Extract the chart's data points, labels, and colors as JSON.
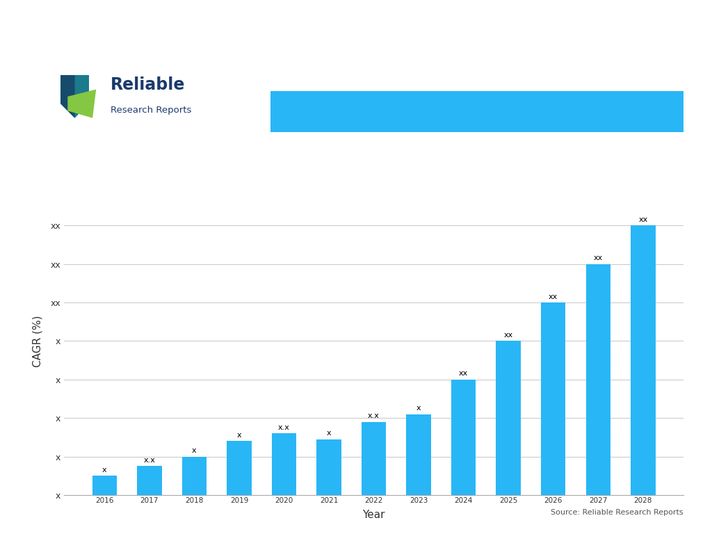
{
  "years": [
    2016,
    2017,
    2018,
    2019,
    2020,
    2021,
    2022,
    2023,
    2024,
    2025,
    2026,
    2027,
    2028
  ],
  "values": [
    1.0,
    1.5,
    2.0,
    2.8,
    3.2,
    2.9,
    3.8,
    4.2,
    6.0,
    8.0,
    10.0,
    12.0,
    14.0
  ],
  "bar_labels": [
    "x",
    "x.x",
    "x",
    "x",
    "x.x",
    "x",
    "x.x",
    "x",
    "xx",
    "xx",
    "xx",
    "xx",
    "xx"
  ],
  "ytick_labels": [
    "x",
    "x",
    "x",
    "x",
    "x",
    "xx",
    "xx",
    "xx"
  ],
  "ytick_values": [
    0,
    2,
    4,
    6,
    8,
    10,
    12,
    14
  ],
  "bar_color": "#29B6F6",
  "title_banner_color": "#29B6F6",
  "title_text": "",
  "ylabel": "CAGR (%)",
  "xlabel": "Year",
  "source_text": "Source: Reliable Research Reports",
  "background_color": "#FFFFFF",
  "logo_text_line1": "Reliable",
  "logo_text_line2": "Research Reports",
  "logo_shield_color1": "#1A6B8A",
  "logo_shield_color2": "#164B6B",
  "logo_leaf_color": "#85C742",
  "fig_width": 10.24,
  "fig_height": 7.91,
  "ylim": [
    0,
    16
  ]
}
